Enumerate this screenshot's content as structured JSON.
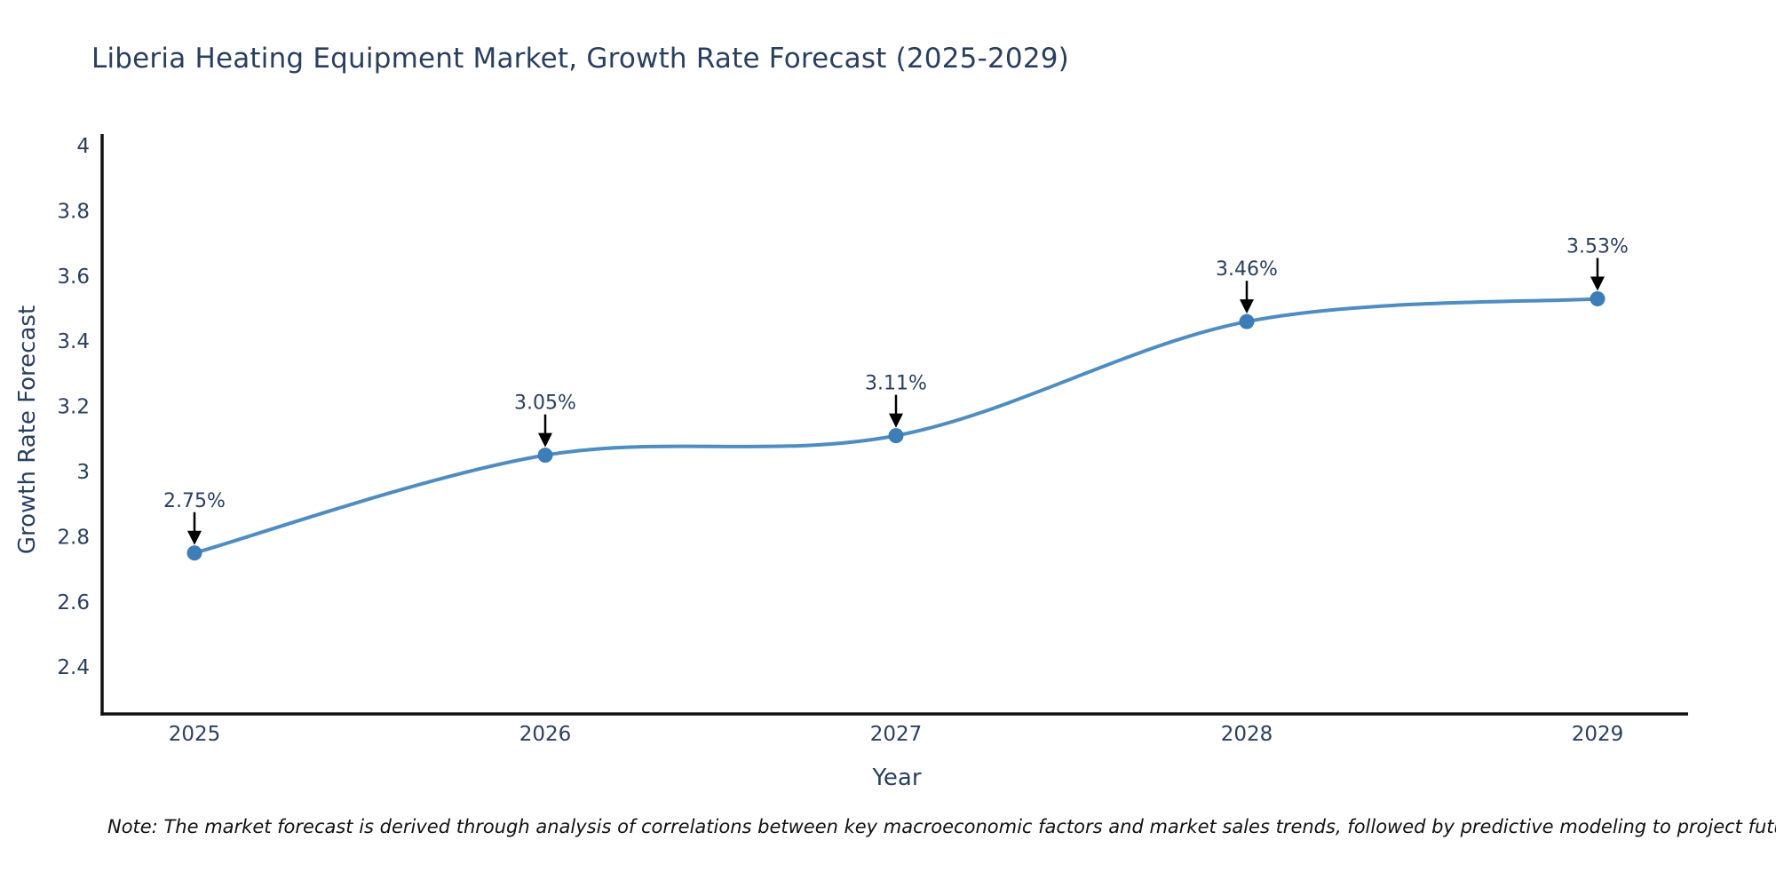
{
  "page": {
    "background": "#ffffff"
  },
  "chart_data": {
    "type": "line",
    "title": "Liberia Heating Equipment Market, Growth Rate Forecast (2025-2029)",
    "xlabel": "Year",
    "ylabel": "Growth Rate Forecast",
    "categories": [
      "2025",
      "2026",
      "2027",
      "2028",
      "2029"
    ],
    "series": [
      {
        "name": "Growth Rate Forecast",
        "values": [
          2.75,
          3.05,
          3.11,
          3.46,
          3.53
        ],
        "point_labels": [
          "2.75%",
          "3.05%",
          "3.11%",
          "3.46%",
          "3.53%"
        ]
      }
    ],
    "line_shape": "spline",
    "markers": true,
    "grid": false,
    "legend_position": "none",
    "ylim": [
      2.26,
      4.04
    ],
    "y_ticks": [
      {
        "value": 4.0,
        "label": "4"
      },
      {
        "value": 3.8,
        "label": "3.8"
      },
      {
        "value": 3.6,
        "label": "3.6"
      },
      {
        "value": 3.4,
        "label": "3.4"
      },
      {
        "value": 3.2,
        "label": "3.2"
      },
      {
        "value": 3.0,
        "label": "3"
      },
      {
        "value": 2.8,
        "label": "2.8"
      },
      {
        "value": 2.6,
        "label": "2.6"
      },
      {
        "value": 2.4,
        "label": "2.4"
      }
    ],
    "annotation_arrow": "down",
    "colors": {
      "line": "#4e8cc2",
      "marker": "#3d7db8",
      "arrow": "#000000",
      "axis_line": "#111111",
      "text": "#2a3f5f",
      "note_text": "#111111"
    },
    "note": "Note: The market forecast is derived through analysis of correlations between key macroeconomic factors and market sales trends, followed by predictive modeling to project future sales"
  }
}
